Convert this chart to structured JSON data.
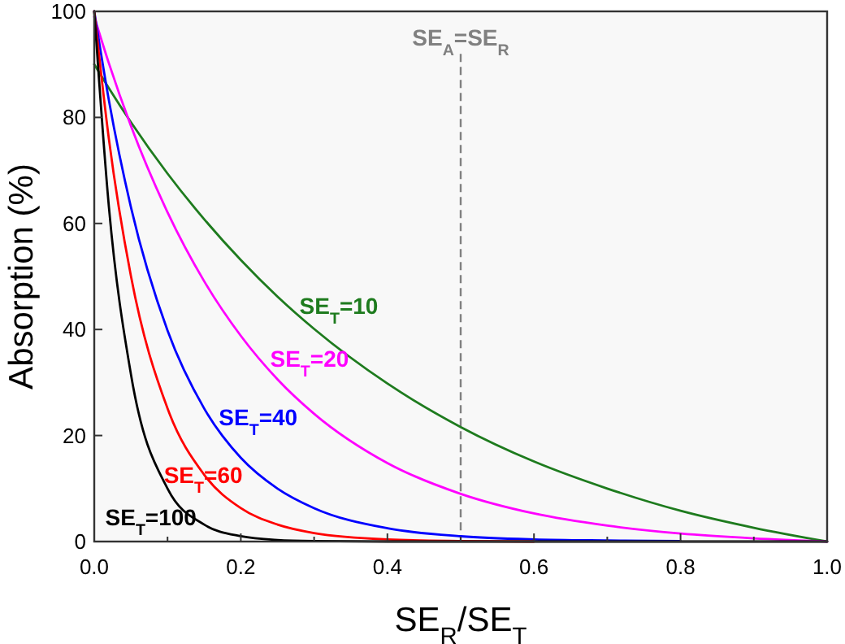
{
  "chart_data": {
    "type": "line",
    "xlabel": "SE$_{R}$/SE$_{T}$",
    "ylabel": "Absorption (%)",
    "x": [
      0,
      0.02,
      0.05,
      0.1,
      0.15,
      0.2,
      0.25,
      0.3,
      0.4,
      0.5,
      0.6,
      0.7,
      0.8,
      0.9,
      1.0
    ],
    "xlim": [
      0,
      1
    ],
    "xticks": [
      {
        "value": 0,
        "label": "0.0"
      },
      0.2,
      0.4,
      0.6,
      0.8,
      {
        "value": 1,
        "label": "1.0"
      }
    ],
    "ylim": [
      0,
      100
    ],
    "yticks": [
      0,
      20,
      40,
      60,
      80,
      100
    ],
    "grid": false,
    "legend": false,
    "marker": "none",
    "line_style": "solid",
    "series": [
      {
        "name": "SE$_{T}$=10",
        "color": "#1e7b1e",
        "values": [
          90,
          85.5,
          79.1,
          69.4,
          60.8,
          53.1,
          46.2,
          40.1,
          29.8,
          21.6,
          15.1,
          10,
          5.8,
          2.6,
          0
        ]
      },
      {
        "name": "SE$_{T}$=20",
        "color": "#ff00ff",
        "values": [
          99,
          90.2,
          78.4,
          62.1,
          49.1,
          38.8,
          30.6,
          24.1,
          14.8,
          9,
          5.3,
          3,
          1.5,
          0.6,
          0
        ]
      },
      {
        "name": "SE$_{T}$=40",
        "color": "#0000ff",
        "values": [
          100,
          83.2,
          63.1,
          39.8,
          25.1,
          15.8,
          10,
          6.3,
          2.5,
          1,
          0.4,
          0.2,
          0.1,
          null,
          null
        ]
      },
      {
        "name": "SE$_{T}$=60",
        "color": "#ff0000",
        "values": [
          100,
          75.9,
          50.1,
          25.1,
          12.6,
          6.3,
          3.2,
          1.6,
          0.4,
          0.1,
          0,
          null,
          null,
          null,
          null
        ]
      },
      {
        "name": "SE$_{T}$=100",
        "color": "#000000",
        "values": [
          100,
          63.1,
          31.6,
          10,
          3.2,
          1,
          0.3,
          0.1,
          0,
          0,
          0,
          0,
          0,
          0,
          0
        ]
      }
    ],
    "ref_lines": [
      {
        "axis": "x",
        "value": 0.5,
        "label": "SE$_{A}$=SE$_{R}$",
        "color": "#808080",
        "line_style": "dashed"
      }
    ]
  }
}
